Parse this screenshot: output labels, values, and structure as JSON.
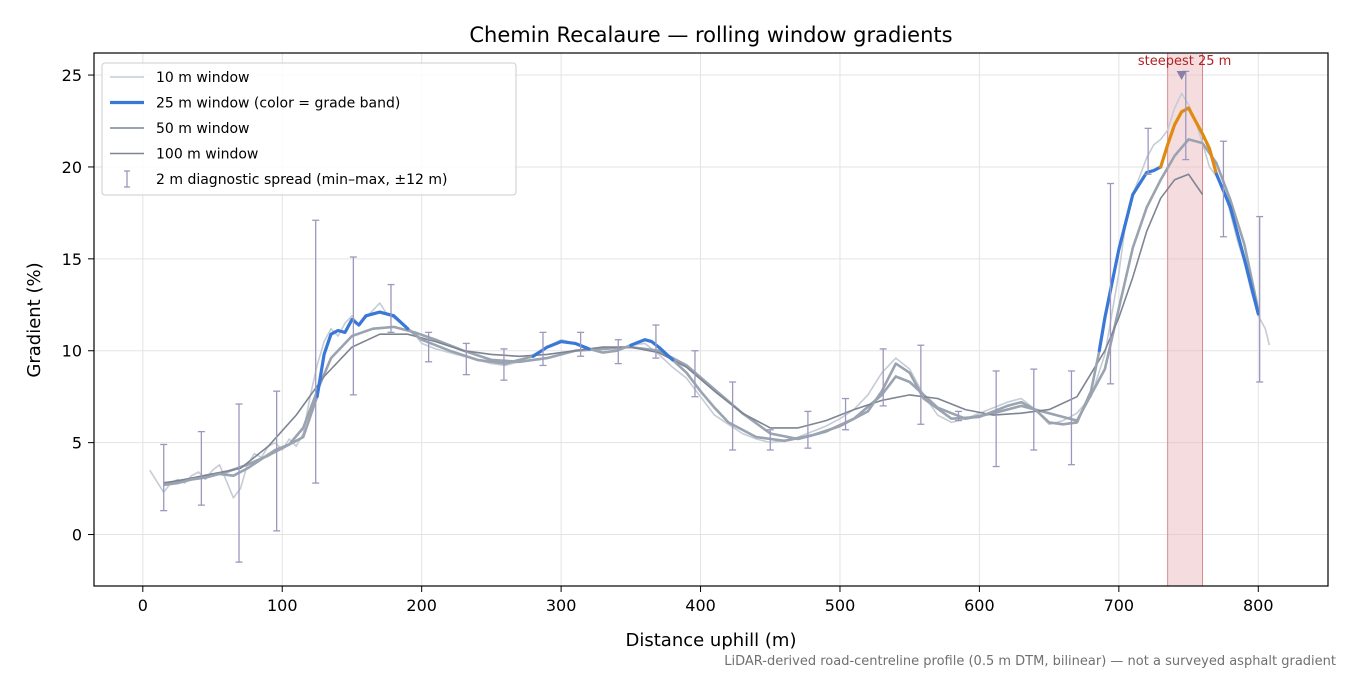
{
  "chart_data": {
    "type": "line",
    "title": "Chemin Recalaure — rolling window gradients",
    "xlabel": "Distance uphill (m)",
    "ylabel": "Gradient (%)",
    "xlim": [
      -35,
      850
    ],
    "ylim": [
      -2.8,
      26.2
    ],
    "x_ticks": [
      0,
      100,
      200,
      300,
      400,
      500,
      600,
      700,
      800
    ],
    "y_ticks": [
      0,
      5,
      10,
      15,
      20,
      25
    ],
    "grid": true,
    "legend_position": "top-left",
    "footnote": "LiDAR-derived road-centreline profile (0.5 m DTM, bilinear) — not a surveyed asphalt gradient",
    "highlight_band": {
      "x_start": 735,
      "x_end": 760,
      "color": "#e8b4b8"
    },
    "annotation": {
      "text": "steepest 25 m",
      "x": 745,
      "y": 25.0,
      "color": "#b22222"
    },
    "colors": {
      "w10": "#c5ccd5",
      "w50": "#9aa3b0",
      "w100": "#7d8492",
      "band_blue": "#3a78d8",
      "band_orange": "#e08a12",
      "errorbar": "#9c98bd"
    },
    "series": [
      {
        "name": "10 m window",
        "style": "thin",
        "x": [
          5,
          10,
          15,
          20,
          25,
          30,
          35,
          40,
          45,
          50,
          55,
          60,
          65,
          70,
          75,
          80,
          85,
          90,
          95,
          100,
          105,
          110,
          115,
          120,
          125,
          130,
          135,
          140,
          145,
          150,
          155,
          160,
          165,
          170,
          175,
          180,
          185,
          190,
          195,
          200,
          210,
          220,
          230,
          240,
          250,
          260,
          270,
          280,
          290,
          300,
          310,
          320,
          330,
          340,
          350,
          360,
          370,
          380,
          390,
          400,
          410,
          420,
          430,
          440,
          450,
          460,
          470,
          480,
          490,
          500,
          510,
          520,
          530,
          540,
          550,
          560,
          570,
          580,
          590,
          600,
          610,
          620,
          630,
          640,
          650,
          660,
          670,
          680,
          690,
          700,
          705,
          710,
          715,
          720,
          725,
          730,
          735,
          740,
          745,
          750,
          755,
          760,
          765,
          770,
          775,
          780,
          785,
          790,
          795,
          800,
          805,
          808
        ],
        "values": [
          3.5,
          2.9,
          2.3,
          2.8,
          3.0,
          2.8,
          3.2,
          3.4,
          3.0,
          3.5,
          3.8,
          2.9,
          2.0,
          2.5,
          3.8,
          4.4,
          4.2,
          4.8,
          5.0,
          4.6,
          5.2,
          4.8,
          5.5,
          7.5,
          9.2,
          10.5,
          11.2,
          10.8,
          11.5,
          11.9,
          11.4,
          11.8,
          12.2,
          12.6,
          12.0,
          11.8,
          11.5,
          11.2,
          10.9,
          10.4,
          10.1,
          9.9,
          9.7,
          9.5,
          9.3,
          9.2,
          9.4,
          9.8,
          10.2,
          10.6,
          10.4,
          10.1,
          9.9,
          10.0,
          10.3,
          10.4,
          9.8,
          9.1,
          8.5,
          7.5,
          6.5,
          6.0,
          5.5,
          5.2,
          5.0,
          5.1,
          5.3,
          5.6,
          5.9,
          6.3,
          6.8,
          7.6,
          8.8,
          9.6,
          9.0,
          7.6,
          6.5,
          6.1,
          6.3,
          6.6,
          6.9,
          7.2,
          7.4,
          6.8,
          6.0,
          6.2,
          6.6,
          7.5,
          9.8,
          14.2,
          17.0,
          18.5,
          19.5,
          20.5,
          21.2,
          21.5,
          22.0,
          23.2,
          24.0,
          23.4,
          22.5,
          21.3,
          20.0,
          19.5,
          18.8,
          17.5,
          16.0,
          14.8,
          13.2,
          11.9,
          11.2,
          10.3
        ]
      },
      {
        "name": "25 m window (color = grade band)",
        "style": "bands",
        "x": [
          15,
          25,
          35,
          45,
          55,
          65,
          75,
          85,
          95,
          105,
          115,
          125,
          130,
          135,
          140,
          145,
          150,
          155,
          160,
          170,
          180,
          190,
          200,
          220,
          240,
          260,
          280,
          290,
          300,
          310,
          320,
          330,
          340,
          350,
          360,
          365,
          370,
          380,
          390,
          400,
          410,
          420,
          440,
          460,
          480,
          500,
          520,
          530,
          540,
          550,
          560,
          580,
          600,
          620,
          630,
          640,
          650,
          660,
          670,
          680,
          686,
          690,
          700,
          710,
          720,
          725,
          730,
          735,
          740,
          745,
          750,
          755,
          760,
          765,
          770,
          780,
          790,
          800
        ],
        "values": [
          2.7,
          2.8,
          3.0,
          3.1,
          3.3,
          3.2,
          3.6,
          4.1,
          4.6,
          4.9,
          5.3,
          7.5,
          9.8,
          10.9,
          11.1,
          11.0,
          11.7,
          11.4,
          11.9,
          12.1,
          11.9,
          11.2,
          10.6,
          10.0,
          9.5,
          9.3,
          9.7,
          10.2,
          10.5,
          10.4,
          10.1,
          9.9,
          10.0,
          10.3,
          10.6,
          10.5,
          10.2,
          9.5,
          8.8,
          7.8,
          6.9,
          6.1,
          5.3,
          5.1,
          5.4,
          5.9,
          6.7,
          7.8,
          9.3,
          8.8,
          7.4,
          6.3,
          6.4,
          7.0,
          7.2,
          6.8,
          6.1,
          6.0,
          6.1,
          7.8,
          10.0,
          11.8,
          15.5,
          18.5,
          19.7,
          19.8,
          20.0,
          21.2,
          22.3,
          23.0,
          23.2,
          22.5,
          21.8,
          21.0,
          19.6,
          17.8,
          15.0,
          12.0
        ],
        "bands": [
          {
            "x_start": 120,
            "x_end": 190,
            "color": "band_blue"
          },
          {
            "x_start": 280,
            "x_end": 320,
            "color": "band_blue"
          },
          {
            "x_start": 345,
            "x_end": 380,
            "color": "band_blue"
          },
          {
            "x_start": 686,
            "x_end": 730,
            "color": "band_blue"
          },
          {
            "x_start": 730,
            "x_end": 770,
            "color": "band_orange"
          },
          {
            "x_start": 770,
            "x_end": 800,
            "color": "band_blue"
          }
        ]
      },
      {
        "name": "50 m window",
        "style": "medium",
        "x": [
          15,
          30,
          45,
          60,
          75,
          90,
          105,
          115,
          125,
          135,
          150,
          165,
          180,
          195,
          210,
          230,
          250,
          270,
          290,
          310,
          330,
          350,
          370,
          390,
          410,
          430,
          450,
          470,
          490,
          510,
          530,
          540,
          550,
          570,
          590,
          610,
          630,
          650,
          670,
          690,
          700,
          710,
          720,
          730,
          740,
          750,
          760,
          770,
          780,
          790,
          800
        ],
        "values": [
          2.8,
          2.9,
          3.2,
          3.4,
          3.8,
          4.3,
          4.9,
          5.8,
          7.8,
          9.6,
          10.8,
          11.2,
          11.3,
          11.0,
          10.6,
          10.0,
          9.5,
          9.4,
          9.6,
          10.0,
          10.1,
          10.2,
          10.0,
          9.2,
          7.9,
          6.6,
          5.5,
          5.2,
          5.6,
          6.3,
          7.6,
          8.6,
          8.3,
          6.9,
          6.3,
          6.6,
          7.0,
          6.6,
          6.2,
          9.0,
          12.3,
          15.6,
          17.8,
          19.3,
          20.6,
          21.5,
          21.3,
          20.2,
          18.2,
          15.8,
          12.2
        ]
      },
      {
        "name": "100 m window",
        "style": "dark",
        "x": [
          15,
          30,
          50,
          70,
          90,
          110,
          130,
          150,
          170,
          190,
          210,
          230,
          250,
          270,
          290,
          310,
          330,
          350,
          370,
          390,
          410,
          430,
          450,
          470,
          490,
          510,
          530,
          550,
          570,
          590,
          610,
          630,
          650,
          670,
          690,
          700,
          710,
          720,
          730,
          740,
          750,
          760
        ],
        "values": [
          2.8,
          3.0,
          3.3,
          3.6,
          4.8,
          6.5,
          8.6,
          10.2,
          10.9,
          10.9,
          10.5,
          10.0,
          9.8,
          9.7,
          9.8,
          10.0,
          10.2,
          10.2,
          9.9,
          9.1,
          7.8,
          6.6,
          5.8,
          5.8,
          6.2,
          6.8,
          7.3,
          7.6,
          7.4,
          6.8,
          6.5,
          6.6,
          6.8,
          7.5,
          10.0,
          11.8,
          14.0,
          16.5,
          18.3,
          19.3,
          19.6,
          18.5
        ]
      }
    ],
    "errorbars": {
      "name": "2 m diagnostic spread (min–max, ±12 m)",
      "x": [
        15,
        42,
        69,
        96,
        124,
        151,
        178,
        205,
        232,
        259,
        287,
        314,
        341,
        368,
        396,
        423,
        450,
        477,
        504,
        531,
        558,
        585,
        612,
        639,
        666,
        694,
        721,
        748,
        775,
        801
      ],
      "low": [
        1.3,
        1.6,
        -1.5,
        0.2,
        2.8,
        7.6,
        11.0,
        9.4,
        8.7,
        8.4,
        9.2,
        9.7,
        9.3,
        9.6,
        7.5,
        4.6,
        4.6,
        4.7,
        5.7,
        7.0,
        6.0,
        6.2,
        3.7,
        4.6,
        3.8,
        8.2,
        19.6,
        20.4,
        16.2,
        8.3
      ],
      "high": [
        4.9,
        5.6,
        7.1,
        7.8,
        17.1,
        15.1,
        13.6,
        11.0,
        10.4,
        10.1,
        11.0,
        11.0,
        10.6,
        11.4,
        10.0,
        8.3,
        5.7,
        6.7,
        7.4,
        10.1,
        10.3,
        6.7,
        8.9,
        9.0,
        8.9,
        19.1,
        22.1,
        25.2,
        21.4,
        17.3
      ]
    }
  }
}
